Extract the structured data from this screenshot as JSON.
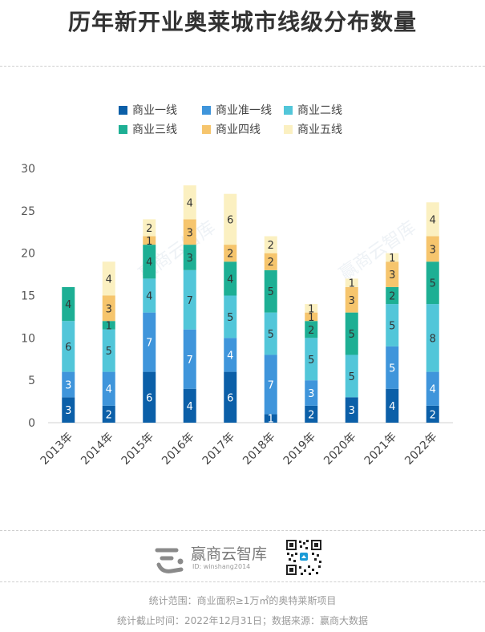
{
  "title": "历年新开业奥莱城市线级分布数量",
  "colors": {
    "商业一线": "#0b5fa8",
    "商业准一线": "#3f95db",
    "商业二线": "#52c6d9",
    "商业三线": "#1daf94",
    "商业四线": "#f6c56d",
    "商业五线": "#fbf0c1"
  },
  "chart_data": {
    "type": "bar",
    "stacked": true,
    "title": "历年新开业奥莱城市线级分布数量",
    "categories": [
      "2013年",
      "2014年",
      "2015年",
      "2016年",
      "2017年",
      "2018年",
      "2019年",
      "2020年",
      "2021年",
      "2022年"
    ],
    "series": [
      {
        "name": "商业一线",
        "values": [
          3,
          2,
          6,
          4,
          6,
          1,
          2,
          3,
          4,
          2
        ]
      },
      {
        "name": "商业准一线",
        "values": [
          3,
          4,
          7,
          7,
          4,
          7,
          3,
          0,
          5,
          4
        ]
      },
      {
        "name": "商业二线",
        "values": [
          6,
          5,
          4,
          7,
          5,
          5,
          5,
          5,
          5,
          8
        ]
      },
      {
        "name": "商业三线",
        "values": [
          4,
          1,
          4,
          3,
          4,
          5,
          2,
          5,
          2,
          5
        ]
      },
      {
        "name": "商业四线",
        "values": [
          0,
          3,
          1,
          3,
          2,
          2,
          1,
          3,
          3,
          3
        ]
      },
      {
        "name": "商业五线",
        "values": [
          0,
          4,
          2,
          4,
          6,
          2,
          1,
          1,
          1,
          4
        ]
      }
    ],
    "yticks": [
      0,
      5,
      10,
      15,
      20,
      25,
      30
    ],
    "ylim": [
      0,
      30
    ],
    "xlabel": "",
    "ylabel": "",
    "legend_position": "top-center"
  },
  "brand": {
    "name": "赢商云智库",
    "id": "ID: winshang2014",
    "watermark": "赢商云智库"
  },
  "footnotes": {
    "scope": "统计范围：商业面积≥1万㎡的奥特莱斯项目",
    "source": "统计截止时间：2022年12月31日；数据来源：赢商大数据"
  }
}
